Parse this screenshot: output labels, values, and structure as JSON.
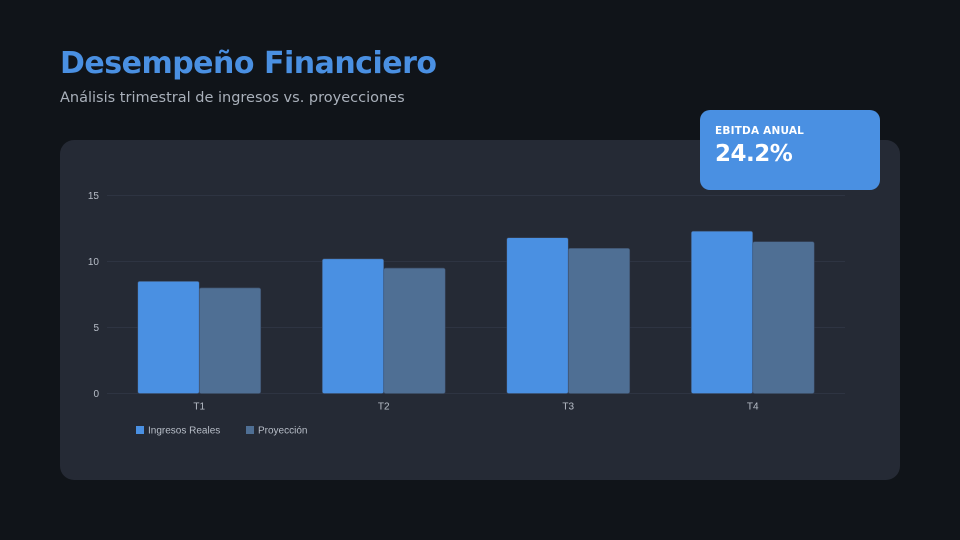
{
  "header": {
    "title": "Desempeño Financiero",
    "subtitle": "Análisis trimestral de ingresos vs. proyecciones"
  },
  "kpi": {
    "label": "EBITDA ANUAL",
    "value": "24.2%"
  },
  "colors": {
    "background": "#101419",
    "panel": "#252a35",
    "accent": "#4a90e2",
    "projection": "#4f6f94",
    "grid": "#2e3442",
    "tick_text": "#b8bec8"
  },
  "chart_data": {
    "type": "bar",
    "title": "",
    "xlabel": "",
    "ylabel": "",
    "categories": [
      "T1",
      "T2",
      "T3",
      "T4"
    ],
    "series": [
      {
        "name": "Ingresos Reales",
        "color": "#4a90e2",
        "values": [
          8.5,
          10.2,
          11.8,
          12.3
        ]
      },
      {
        "name": "Proyección",
        "color": "#4f6f94",
        "values": [
          8.0,
          9.5,
          11.0,
          11.5
        ]
      }
    ],
    "ylim": [
      0,
      15
    ],
    "yticks": [
      0,
      5,
      10,
      15
    ],
    "grid": true,
    "legend_position": "bottom-left"
  }
}
